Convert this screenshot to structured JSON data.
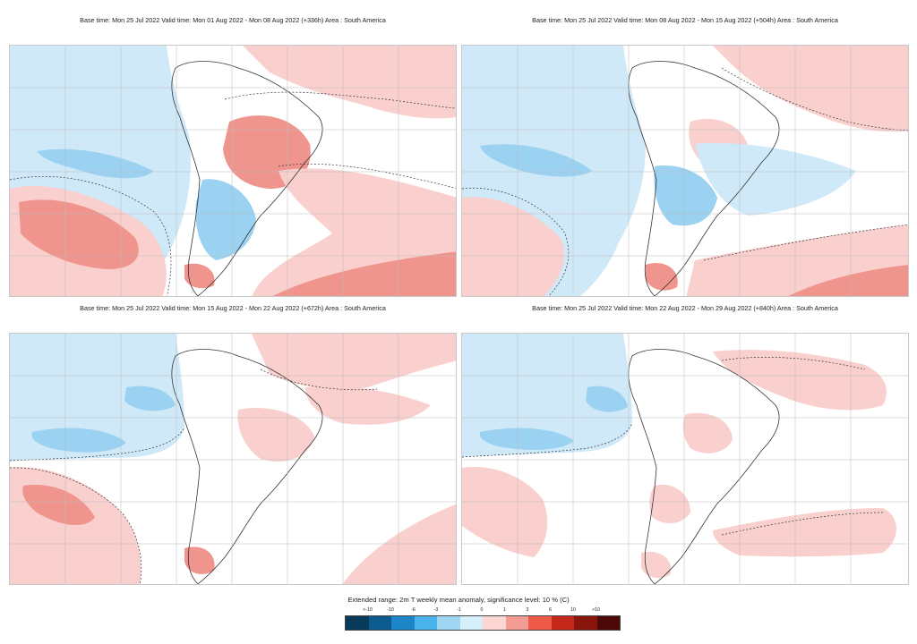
{
  "panels": [
    {
      "title": "Base time: Mon 25 Jul 2022 Valid time: Mon 01 Aug 2022 - Mon 08 Aug 2022 (+336h) Area : South America"
    },
    {
      "title": "Base time: Mon 25 Jul 2022 Valid time: Mon 08 Aug 2022 - Mon 15 Aug 2022 (+504h) Area : South America"
    },
    {
      "title": "Base time: Mon 25 Jul 2022 Valid time: Mon 15 Aug 2022 - Mon 22 Aug 2022 (+672h) Area : South America"
    },
    {
      "title": "Base time: Mon 25 Jul 2022 Valid time: Mon 22 Aug 2022 - Mon 29 Aug 2022 (+840h) Area : South America"
    }
  ],
  "colorbar": {
    "title": "Extended range: 2m T weekly mean anomaly, significance level: 10 % (C)",
    "ticks": [
      "<-10",
      "-10",
      "-6",
      "-3",
      "-1",
      "0",
      "1",
      "3",
      "6",
      "10",
      ">10"
    ],
    "colors": [
      "#0a3a5a",
      "#0d5a8f",
      "#1c86c8",
      "#49b3ea",
      "#9fd7f3",
      "#d7effb",
      "#fbd6d3",
      "#f49b93",
      "#ee5a47",
      "#c4281a",
      "#8a150d",
      "#4d0808"
    ]
  },
  "palette": {
    "cold_light": "#cfe9f9",
    "cold_mid": "#9bd2f1",
    "warm_light": "#f9d0cd",
    "warm_mid": "#f0958d"
  }
}
